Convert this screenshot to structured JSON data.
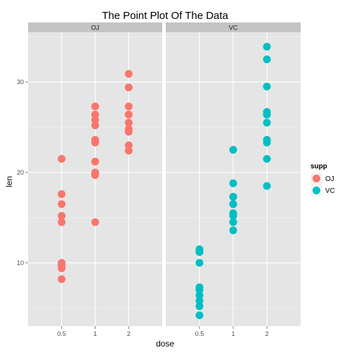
{
  "chart_data": {
    "type": "scatter",
    "title": "The Point Plot Of The Data",
    "xlabel": "dose",
    "ylabel": "len",
    "x_ticks": [
      "0.5",
      "1",
      "2"
    ],
    "y_ticks": [
      10,
      20,
      30
    ],
    "ylim": [
      3.0,
      35.5
    ],
    "grid": true,
    "legend_position": "right",
    "legend_title": "supp",
    "colors": {
      "OJ": "#F8766D",
      "VC": "#00BFC4"
    },
    "panels": [
      {
        "name": "OJ",
        "points": [
          {
            "x": "0.5",
            "y": 15.2
          },
          {
            "x": "0.5",
            "y": 21.5
          },
          {
            "x": "0.5",
            "y": 17.6
          },
          {
            "x": "0.5",
            "y": 9.7
          },
          {
            "x": "0.5",
            "y": 14.5
          },
          {
            "x": "0.5",
            "y": 10.0
          },
          {
            "x": "0.5",
            "y": 8.2
          },
          {
            "x": "0.5",
            "y": 9.4
          },
          {
            "x": "0.5",
            "y": 16.5
          },
          {
            "x": "0.5",
            "y": 9.7
          },
          {
            "x": "1",
            "y": 19.7
          },
          {
            "x": "1",
            "y": 23.3
          },
          {
            "x": "1",
            "y": 23.6
          },
          {
            "x": "1",
            "y": 26.4
          },
          {
            "x": "1",
            "y": 20.0
          },
          {
            "x": "1",
            "y": 25.2
          },
          {
            "x": "1",
            "y": 25.8
          },
          {
            "x": "1",
            "y": 21.2
          },
          {
            "x": "1",
            "y": 14.5
          },
          {
            "x": "1",
            "y": 27.3
          },
          {
            "x": "2",
            "y": 25.5
          },
          {
            "x": "2",
            "y": 26.4
          },
          {
            "x": "2",
            "y": 22.4
          },
          {
            "x": "2",
            "y": 24.5
          },
          {
            "x": "2",
            "y": 24.8
          },
          {
            "x": "2",
            "y": 30.9
          },
          {
            "x": "2",
            "y": 26.4
          },
          {
            "x": "2",
            "y": 27.3
          },
          {
            "x": "2",
            "y": 29.4
          },
          {
            "x": "2",
            "y": 23.0
          }
        ]
      },
      {
        "name": "VC",
        "points": [
          {
            "x": "0.5",
            "y": 4.2
          },
          {
            "x": "0.5",
            "y": 11.5
          },
          {
            "x": "0.5",
            "y": 7.3
          },
          {
            "x": "0.5",
            "y": 5.8
          },
          {
            "x": "0.5",
            "y": 6.4
          },
          {
            "x": "0.5",
            "y": 10.0
          },
          {
            "x": "0.5",
            "y": 11.2
          },
          {
            "x": "0.5",
            "y": 11.2
          },
          {
            "x": "0.5",
            "y": 5.2
          },
          {
            "x": "0.5",
            "y": 7.0
          },
          {
            "x": "1",
            "y": 16.5
          },
          {
            "x": "1",
            "y": 16.5
          },
          {
            "x": "1",
            "y": 15.2
          },
          {
            "x": "1",
            "y": 17.3
          },
          {
            "x": "1",
            "y": 22.5
          },
          {
            "x": "1",
            "y": 17.3
          },
          {
            "x": "1",
            "y": 13.6
          },
          {
            "x": "1",
            "y": 14.5
          },
          {
            "x": "1",
            "y": 18.8
          },
          {
            "x": "1",
            "y": 15.5
          },
          {
            "x": "2",
            "y": 23.6
          },
          {
            "x": "2",
            "y": 18.5
          },
          {
            "x": "2",
            "y": 33.9
          },
          {
            "x": "2",
            "y": 25.5
          },
          {
            "x": "2",
            "y": 26.4
          },
          {
            "x": "2",
            "y": 32.5
          },
          {
            "x": "2",
            "y": 26.7
          },
          {
            "x": "2",
            "y": 21.5
          },
          {
            "x": "2",
            "y": 23.3
          },
          {
            "x": "2",
            "y": 29.5
          }
        ]
      }
    ]
  }
}
